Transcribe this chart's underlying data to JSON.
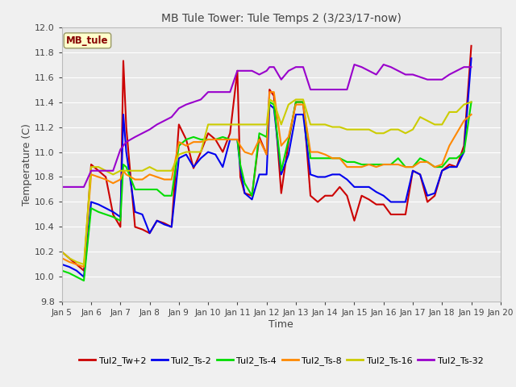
{
  "title": "MB Tule Tower: Tule Temps 2 (3/23/17-now)",
  "xlabel": "Time",
  "ylabel": "Temperature (C)",
  "xlim": [
    5,
    20
  ],
  "ylim": [
    9.8,
    12.0
  ],
  "xticks": [
    5,
    6,
    7,
    8,
    9,
    10,
    11,
    12,
    13,
    14,
    15,
    16,
    17,
    18,
    19,
    20
  ],
  "xtick_labels": [
    "Jan 5",
    "Jan 6",
    "Jan 7",
    "Jan 8",
    "Jan 9",
    "Jan 10",
    "Jan 11",
    "Jan 12",
    "Jan 13",
    "Jan 14",
    "Jan 15",
    "Jan 16",
    "Jan 17",
    "Jan 18",
    "Jan 19",
    "Jan 20"
  ],
  "yticks": [
    9.8,
    10.0,
    10.2,
    10.4,
    10.6,
    10.8,
    11.0,
    11.2,
    11.4,
    11.6,
    11.8,
    12.0
  ],
  "fig_bg": "#f0f0f0",
  "plot_bg": "#e8e8e8",
  "grid_color": "#ffffff",
  "annotation_label": "MB_tule",
  "annotation_color": "#880000",
  "annotation_bg": "#ffffcc",
  "annotation_edge": "#999966",
  "series": {
    "Tul2_Tw+2": {
      "color": "#cc0000",
      "x": [
        5.0,
        5.25,
        5.5,
        5.75,
        6.0,
        6.25,
        6.5,
        6.75,
        7.0,
        7.1,
        7.2,
        7.5,
        7.75,
        8.0,
        8.25,
        8.5,
        8.75,
        9.0,
        9.25,
        9.5,
        9.75,
        10.0,
        10.25,
        10.5,
        10.75,
        11.0,
        11.1,
        11.25,
        11.5,
        11.75,
        12.0,
        12.1,
        12.25,
        12.5,
        12.75,
        13.0,
        13.25,
        13.5,
        13.75,
        14.0,
        14.25,
        14.5,
        14.75,
        15.0,
        15.25,
        15.5,
        15.75,
        16.0,
        16.25,
        16.5,
        16.75,
        17.0,
        17.25,
        17.5,
        17.75,
        18.0,
        18.25,
        18.5,
        18.75,
        19.0
      ],
      "y": [
        10.2,
        10.15,
        10.1,
        10.05,
        10.9,
        10.85,
        10.8,
        10.5,
        10.4,
        11.73,
        11.2,
        10.4,
        10.38,
        10.35,
        10.45,
        10.43,
        10.4,
        11.22,
        11.1,
        10.87,
        11.0,
        11.15,
        11.1,
        11.0,
        11.15,
        11.65,
        10.8,
        10.67,
        10.65,
        11.12,
        10.98,
        11.5,
        11.45,
        10.67,
        11.08,
        11.4,
        11.4,
        10.65,
        10.6,
        10.65,
        10.65,
        10.72,
        10.65,
        10.45,
        10.65,
        10.62,
        10.58,
        10.58,
        10.5,
        10.5,
        10.5,
        10.85,
        10.82,
        10.6,
        10.65,
        10.85,
        10.9,
        10.88,
        11.05,
        11.85
      ]
    },
    "Tul2_Ts-2": {
      "color": "#0000ee",
      "x": [
        5.0,
        5.25,
        5.5,
        5.75,
        6.0,
        6.25,
        6.5,
        6.75,
        7.0,
        7.1,
        7.2,
        7.5,
        7.75,
        8.0,
        8.25,
        8.5,
        8.75,
        9.0,
        9.25,
        9.5,
        9.75,
        10.0,
        10.25,
        10.5,
        10.75,
        11.0,
        11.1,
        11.25,
        11.5,
        11.75,
        12.0,
        12.1,
        12.25,
        12.5,
        12.75,
        13.0,
        13.25,
        13.5,
        13.75,
        14.0,
        14.25,
        14.5,
        14.75,
        15.0,
        15.25,
        15.5,
        15.75,
        16.0,
        16.25,
        16.5,
        16.75,
        17.0,
        17.25,
        17.5,
        17.75,
        18.0,
        18.25,
        18.5,
        18.75,
        19.0
      ],
      "y": [
        10.1,
        10.08,
        10.05,
        10.0,
        10.6,
        10.58,
        10.55,
        10.52,
        10.48,
        11.3,
        11.0,
        10.52,
        10.5,
        10.35,
        10.45,
        10.42,
        10.4,
        10.95,
        10.98,
        10.88,
        10.95,
        11.0,
        10.98,
        10.88,
        11.1,
        11.1,
        10.87,
        10.67,
        10.62,
        10.82,
        10.82,
        11.38,
        11.35,
        10.82,
        10.98,
        11.3,
        11.3,
        10.82,
        10.8,
        10.8,
        10.82,
        10.82,
        10.78,
        10.72,
        10.72,
        10.72,
        10.68,
        10.65,
        10.6,
        10.6,
        10.6,
        10.85,
        10.82,
        10.65,
        10.67,
        10.85,
        10.88,
        10.88,
        11.0,
        11.75
      ]
    },
    "Tul2_Ts-4": {
      "color": "#00dd00",
      "x": [
        5.0,
        5.25,
        5.5,
        5.75,
        6.0,
        6.25,
        6.5,
        6.75,
        7.0,
        7.1,
        7.2,
        7.5,
        7.75,
        8.0,
        8.25,
        8.5,
        8.75,
        9.0,
        9.25,
        9.5,
        9.75,
        10.0,
        10.25,
        10.5,
        10.75,
        11.0,
        11.1,
        11.25,
        11.5,
        11.75,
        12.0,
        12.1,
        12.25,
        12.5,
        12.75,
        13.0,
        13.25,
        13.5,
        13.75,
        14.0,
        14.25,
        14.5,
        14.75,
        15.0,
        15.25,
        15.5,
        15.75,
        16.0,
        16.25,
        16.5,
        16.75,
        17.0,
        17.25,
        17.5,
        17.75,
        18.0,
        18.25,
        18.5,
        18.75,
        19.0
      ],
      "y": [
        10.05,
        10.03,
        10.0,
        9.97,
        10.55,
        10.52,
        10.5,
        10.48,
        10.45,
        10.9,
        10.88,
        10.7,
        10.7,
        10.7,
        10.7,
        10.65,
        10.65,
        11.05,
        11.1,
        11.12,
        11.1,
        11.1,
        11.1,
        11.12,
        11.1,
        11.1,
        10.9,
        10.75,
        10.65,
        11.15,
        11.12,
        11.4,
        11.38,
        10.85,
        11.1,
        11.4,
        11.4,
        10.95,
        10.95,
        10.95,
        10.95,
        10.95,
        10.92,
        10.92,
        10.9,
        10.9,
        10.9,
        10.9,
        10.9,
        10.95,
        10.88,
        10.88,
        10.95,
        10.92,
        10.88,
        10.88,
        10.95,
        10.95,
        11.0,
        11.4
      ]
    },
    "Tul2_Ts-8": {
      "color": "#ff8800",
      "x": [
        5.0,
        5.25,
        5.5,
        5.75,
        6.0,
        6.25,
        6.5,
        6.75,
        7.0,
        7.1,
        7.2,
        7.5,
        7.75,
        8.0,
        8.25,
        8.5,
        8.75,
        9.0,
        9.25,
        9.5,
        9.75,
        10.0,
        10.25,
        10.5,
        10.75,
        11.0,
        11.1,
        11.25,
        11.5,
        11.75,
        12.0,
        12.1,
        12.25,
        12.5,
        12.75,
        13.0,
        13.25,
        13.5,
        13.75,
        14.0,
        14.25,
        14.5,
        14.75,
        15.0,
        15.25,
        15.5,
        15.75,
        16.0,
        16.25,
        16.5,
        16.75,
        17.0,
        17.25,
        17.5,
        17.75,
        18.0,
        18.25,
        18.5,
        18.75,
        19.0
      ],
      "y": [
        10.15,
        10.12,
        10.1,
        10.08,
        10.82,
        10.8,
        10.78,
        10.75,
        10.78,
        10.85,
        10.82,
        10.78,
        10.78,
        10.82,
        10.8,
        10.78,
        10.78,
        11.08,
        11.05,
        11.08,
        11.08,
        11.1,
        11.1,
        11.1,
        11.1,
        11.1,
        11.05,
        11.0,
        10.98,
        11.1,
        10.98,
        11.48,
        11.48,
        11.05,
        11.12,
        11.38,
        11.38,
        11.0,
        11.0,
        10.98,
        10.95,
        10.95,
        10.88,
        10.88,
        10.88,
        10.9,
        10.88,
        10.9,
        10.9,
        10.9,
        10.88,
        10.88,
        10.92,
        10.92,
        10.88,
        10.9,
        11.05,
        11.15,
        11.25,
        11.3
      ]
    },
    "Tul2_Ts-16": {
      "color": "#cccc00",
      "x": [
        5.0,
        5.25,
        5.5,
        5.75,
        6.0,
        6.25,
        6.5,
        6.75,
        7.0,
        7.1,
        7.2,
        7.5,
        7.75,
        8.0,
        8.25,
        8.5,
        8.75,
        9.0,
        9.25,
        9.5,
        9.75,
        10.0,
        10.25,
        10.5,
        10.75,
        11.0,
        11.1,
        11.25,
        11.5,
        11.75,
        12.0,
        12.1,
        12.25,
        12.5,
        12.75,
        13.0,
        13.25,
        13.5,
        13.75,
        14.0,
        14.25,
        14.5,
        14.75,
        15.0,
        15.25,
        15.5,
        15.75,
        16.0,
        16.25,
        16.5,
        16.75,
        17.0,
        17.25,
        17.5,
        17.75,
        18.0,
        18.25,
        18.5,
        18.75,
        19.0
      ],
      "y": [
        10.2,
        10.15,
        10.12,
        10.1,
        10.88,
        10.88,
        10.85,
        10.82,
        10.85,
        10.85,
        10.85,
        10.85,
        10.85,
        10.88,
        10.85,
        10.85,
        10.85,
        10.98,
        11.0,
        11.0,
        11.0,
        11.22,
        11.22,
        11.22,
        11.22,
        11.22,
        11.22,
        11.22,
        11.22,
        11.22,
        11.22,
        11.42,
        11.4,
        11.22,
        11.38,
        11.42,
        11.42,
        11.22,
        11.22,
        11.22,
        11.2,
        11.2,
        11.18,
        11.18,
        11.18,
        11.18,
        11.15,
        11.15,
        11.18,
        11.18,
        11.15,
        11.18,
        11.28,
        11.25,
        11.22,
        11.22,
        11.32,
        11.32,
        11.38,
        11.4
      ]
    },
    "Tul2_Ts-32": {
      "color": "#9900cc",
      "x": [
        5.0,
        5.25,
        5.5,
        5.75,
        6.0,
        6.25,
        6.5,
        6.75,
        7.0,
        7.1,
        7.2,
        7.5,
        7.75,
        8.0,
        8.25,
        8.5,
        8.75,
        9.0,
        9.25,
        9.5,
        9.75,
        10.0,
        10.25,
        10.5,
        10.75,
        11.0,
        11.1,
        11.25,
        11.5,
        11.75,
        12.0,
        12.1,
        12.25,
        12.5,
        12.75,
        13.0,
        13.25,
        13.5,
        13.75,
        14.0,
        14.25,
        14.5,
        14.75,
        15.0,
        15.25,
        15.5,
        15.75,
        16.0,
        16.25,
        16.5,
        16.75,
        17.0,
        17.25,
        17.5,
        17.75,
        18.0,
        18.25,
        18.5,
        18.75,
        19.0
      ],
      "y": [
        10.72,
        10.72,
        10.72,
        10.72,
        10.85,
        10.85,
        10.85,
        10.85,
        11.02,
        11.05,
        11.08,
        11.12,
        11.15,
        11.18,
        11.22,
        11.25,
        11.28,
        11.35,
        11.38,
        11.4,
        11.42,
        11.48,
        11.48,
        11.48,
        11.48,
        11.65,
        11.65,
        11.65,
        11.65,
        11.62,
        11.65,
        11.68,
        11.68,
        11.58,
        11.65,
        11.68,
        11.68,
        11.5,
        11.5,
        11.5,
        11.5,
        11.5,
        11.5,
        11.7,
        11.68,
        11.65,
        11.62,
        11.7,
        11.68,
        11.65,
        11.62,
        11.62,
        11.6,
        11.58,
        11.58,
        11.58,
        11.62,
        11.65,
        11.68,
        11.68
      ]
    }
  }
}
